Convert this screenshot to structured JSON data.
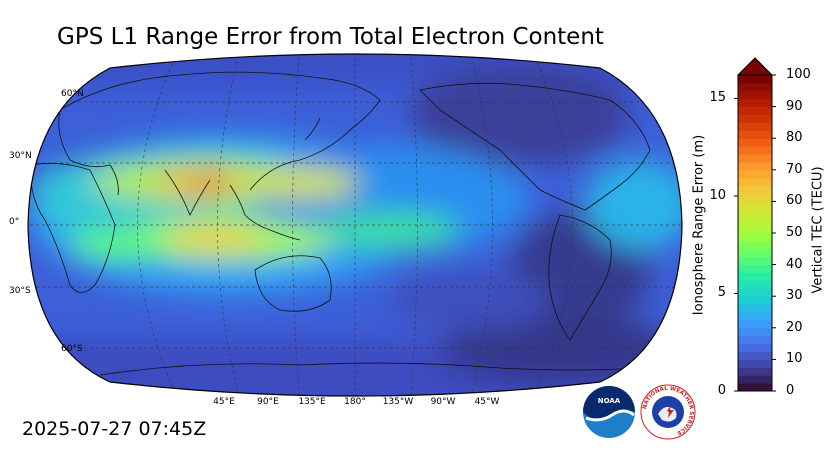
{
  "title": "GPS L1 Range Error from Total Electron Content",
  "timestamp": "2025-07-27 07:45Z",
  "map": {
    "lat_labels": [
      "60°N",
      "30°N",
      "0°",
      "30°S",
      "60°S"
    ],
    "lon_labels": [
      "45°E",
      "90°E",
      "135°E",
      "180°",
      "135°W",
      "90°W",
      "45°W"
    ],
    "central_longitude": "180°"
  },
  "colorbar": {
    "left_label": "Ionosphere Range Error (m)",
    "right_label": "Vertical TEC (TECU)",
    "left_ticks": [
      "0",
      "5",
      "10",
      "15"
    ],
    "right_ticks": [
      "0",
      "10",
      "20",
      "30",
      "40",
      "50",
      "60",
      "70",
      "80",
      "90",
      "100"
    ],
    "tec_range": [
      0,
      100
    ],
    "range_error_range": [
      0,
      16.2
    ],
    "extend": "max",
    "colormap": [
      "#30123b",
      "#4145ab",
      "#4675ed",
      "#39a2fc",
      "#1bcfd4",
      "#24eca6",
      "#61fc6c",
      "#a4fc3b",
      "#d1e834",
      "#f3c63a",
      "#fe9b2d",
      "#f36315",
      "#d93806",
      "#b11901",
      "#7a0402"
    ]
  },
  "logos": {
    "noaa": "NOAA",
    "nws": "NATIONAL WEATHER SERVICE"
  }
}
